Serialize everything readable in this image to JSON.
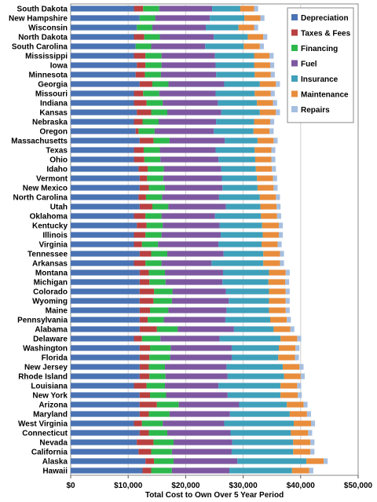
{
  "chart_data": {
    "type": "bar",
    "orientation": "horizontal",
    "stacked": true,
    "title": "",
    "xlabel": "Total Cost to Own Over 5 Year Period",
    "ylabel": "",
    "xlim": [
      0,
      50000
    ],
    "x_ticks": [
      0,
      10000,
      20000,
      30000,
      40000,
      50000
    ],
    "x_tick_labels": [
      "$0",
      "$10,000",
      "$20,000",
      "$30,000",
      "$40,000",
      "$50,000"
    ],
    "grid": "vertical",
    "legend_position": "top-right",
    "categories": [
      "South Dakota",
      "New Hampshire",
      "Wisconsin",
      "North Dakota",
      "South Carolina",
      "Mississippi",
      "Iowa",
      "Minnesota",
      "Georgia",
      "Missouri",
      "Indiana",
      "Kansas",
      "Nebraska",
      "Oregon",
      "Massachusetts",
      "Texas",
      "Ohio",
      "Idaho",
      "Vermont",
      "New Mexico",
      "North Carolina",
      "Utah",
      "Oklahoma",
      "Kentucky",
      "Illinois",
      "Virginia",
      "Tennessee",
      "Arkansas",
      "Montana",
      "Michigan",
      "Colorado",
      "Wyoming",
      "Maine",
      "Pennsylvania",
      "Alabama",
      "Delaware",
      "Washington",
      "Florida",
      "New Jersey",
      "Rhode Island",
      "Louisiana",
      "New York",
      "Arizona",
      "Maryland",
      "West Virginia",
      "Connecticut",
      "Nevada",
      "California",
      "Alaska",
      "Hawaii"
    ],
    "series": [
      {
        "name": "Depreciation",
        "color": "#4a73b3",
        "values": [
          11000,
          12000,
          11500,
          11000,
          11300,
          11000,
          11500,
          11300,
          12000,
          11000,
          11000,
          11500,
          11000,
          11300,
          12000,
          11000,
          11000,
          11800,
          12000,
          12000,
          11800,
          12000,
          11000,
          11500,
          11000,
          11000,
          12000,
          11000,
          12000,
          12000,
          12000,
          12000,
          12000,
          12000,
          12000,
          11000,
          12000,
          12000,
          12000,
          12000,
          11000,
          12000,
          12000,
          12000,
          11000,
          12000,
          11500,
          11800,
          13000,
          12500
        ]
      },
      {
        "name": "Taxes & Fees",
        "color": "#b84040",
        "values": [
          1600,
          0,
          0,
          1800,
          0,
          2000,
          1500,
          1600,
          2200,
          1600,
          2200,
          2500,
          1500,
          500,
          2400,
          1700,
          1800,
          1600,
          1300,
          1600,
          1300,
          2200,
          2000,
          1700,
          2000,
          1400,
          2000,
          2000,
          1600,
          1700,
          2500,
          2400,
          1800,
          1400,
          3000,
          1400,
          1800,
          1700,
          1600,
          1700,
          2200,
          1800,
          3000,
          1600,
          1400,
          1600,
          2900,
          2200,
          1500,
          1500
        ]
      },
      {
        "name": "Financing",
        "color": "#2db84c",
        "values": [
          2800,
          2700,
          2700,
          2700,
          2700,
          2800,
          2800,
          2800,
          2800,
          2800,
          2800,
          2800,
          2800,
          2800,
          2800,
          2800,
          2800,
          2800,
          2800,
          2800,
          2800,
          2800,
          2800,
          2800,
          2800,
          2800,
          2800,
          2800,
          2800,
          2800,
          3200,
          3200,
          3200,
          2800,
          3600,
          3200,
          3600,
          3600,
          2800,
          2800,
          3200,
          2800,
          3800,
          3600,
          3600,
          3200,
          3500,
          3600,
          3400,
          3600
        ]
      },
      {
        "name": "Fuel",
        "color": "#7d58a0",
        "values": [
          9200,
          9500,
          9300,
          9400,
          9400,
          9300,
          9400,
          9600,
          9700,
          9800,
          9600,
          9400,
          10000,
          10300,
          9600,
          9700,
          10100,
          10000,
          10200,
          10000,
          9900,
          10000,
          9300,
          9900,
          10300,
          10500,
          9800,
          8700,
          10100,
          9900,
          9300,
          9900,
          10100,
          10700,
          9800,
          10300,
          10600,
          10700,
          10700,
          10800,
          9300,
          10700,
          10500,
          10500,
          10700,
          11000,
          10200,
          10400,
          11100,
          10000
        ]
      },
      {
        "name": "Insurance",
        "color": "#3fa0ba",
        "values": [
          4900,
          6000,
          5700,
          5900,
          6700,
          6800,
          6700,
          6700,
          6200,
          6800,
          6800,
          6700,
          6600,
          6900,
          5700,
          6800,
          6400,
          6000,
          6100,
          6100,
          7100,
          6000,
          8000,
          7400,
          7300,
          7500,
          6900,
          9000,
          8000,
          8000,
          7500,
          7000,
          7400,
          7800,
          6900,
          10600,
          8200,
          8100,
          9800,
          9800,
          10800,
          9200,
          8300,
          10400,
          12100,
          10500,
          10600,
          10700,
          12000,
          10900
        ]
      },
      {
        "name": "Maintenance",
        "color": "#e88d3c",
        "values": [
          2400,
          2800,
          2700,
          2700,
          2800,
          2700,
          2800,
          2800,
          2800,
          2800,
          2800,
          2800,
          2800,
          2800,
          2800,
          2900,
          2800,
          2800,
          2800,
          2800,
          2800,
          2800,
          2800,
          2900,
          2800,
          2800,
          2900,
          2900,
          2900,
          2900,
          2900,
          2900,
          2900,
          2900,
          2900,
          2900,
          2900,
          2900,
          2900,
          2900,
          2900,
          3000,
          2900,
          3000,
          3000,
          3000,
          3000,
          3000,
          3000,
          3000
        ]
      },
      {
        "name": "Repairs",
        "color": "#a6bfe0",
        "values": [
          700,
          700,
          700,
          700,
          700,
          700,
          700,
          700,
          700,
          700,
          700,
          700,
          700,
          700,
          700,
          700,
          700,
          700,
          700,
          700,
          700,
          700,
          700,
          700,
          700,
          700,
          700,
          700,
          700,
          700,
          700,
          700,
          700,
          700,
          700,
          700,
          700,
          700,
          700,
          700,
          700,
          700,
          700,
          700,
          700,
          700,
          700,
          700,
          700,
          700
        ]
      }
    ]
  }
}
